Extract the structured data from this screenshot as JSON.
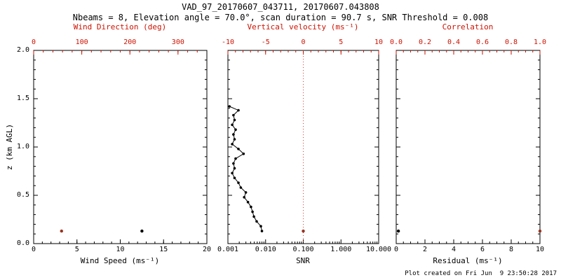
{
  "header": {
    "title": "VAD_97_20170607_043711, 20170607.043808",
    "subtitle": "Nbeams = 8, Elevation angle = 70.0°, scan duration = 90.7 s, SNR Threshold = 0.008"
  },
  "footer": {
    "created": "Plot created on Fri Jun  9 23:50:28 2017"
  },
  "colors": {
    "background": "#ffffff",
    "foreground": "#000000",
    "axis_red": "#cc1100",
    "point_red": "#993322",
    "refline_red": "#cc4433"
  },
  "y_axis": {
    "label": "z (km AGL)",
    "lim": [
      0,
      2
    ],
    "ticks": [
      "2.0",
      "1.5",
      "1.0",
      "0.5",
      "0.0"
    ]
  },
  "chart_data": [
    {
      "type": "scatter",
      "panel": "wind-speed-direction",
      "xlabel": "Wind Speed (ms⁻¹)",
      "xlim": [
        0,
        20
      ],
      "xticks": [
        "0",
        "5",
        "10",
        "15",
        "20"
      ],
      "xminor": 1,
      "ylabel": "z (km AGL)",
      "ylim": [
        0,
        2
      ],
      "top_axis": {
        "label": "Wind Direction (deg)",
        "lim": [
          0,
          360
        ],
        "ticks": [
          "0",
          "100",
          "200",
          "300"
        ],
        "minor": 20
      },
      "series": [
        {
          "name": "wind-speed",
          "axis": "bottom",
          "color": "#000000",
          "marker_r": 2.2,
          "points": [
            [
              12.5,
              0.13
            ]
          ]
        },
        {
          "name": "wind-direction",
          "axis": "top",
          "color": "#993322",
          "marker_r": 2.2,
          "points": [
            [
              58,
              0.13
            ]
          ]
        }
      ]
    },
    {
      "type": "line",
      "panel": "snr-vertical-velocity",
      "xlabel": "SNR",
      "xscale": "log",
      "xlim": [
        0.001,
        10
      ],
      "xticks": [
        "0.001",
        "0.010",
        "0.100",
        "1.000",
        "10.000"
      ],
      "ylim": [
        0,
        2
      ],
      "top_axis": {
        "label": "Vertical velocity (ms⁻¹)",
        "lim": [
          -10,
          10
        ],
        "ticks": [
          "-10",
          "-5",
          "0",
          "5",
          "10"
        ],
        "minor": 1
      },
      "refline": {
        "axis": "top",
        "value": 0,
        "style": "dotted",
        "color": "#cc4433"
      },
      "series": [
        {
          "name": "snr-profile",
          "axis": "bottom",
          "color": "#000000",
          "line": true,
          "marker_r": 1.8,
          "points": [
            [
              0.008,
              0.13
            ],
            [
              0.0075,
              0.18
            ],
            [
              0.0058,
              0.23
            ],
            [
              0.0049,
              0.28
            ],
            [
              0.0045,
              0.33
            ],
            [
              0.0041,
              0.38
            ],
            [
              0.0034,
              0.43
            ],
            [
              0.0027,
              0.48
            ],
            [
              0.003,
              0.53
            ],
            [
              0.0022,
              0.58
            ],
            [
              0.0019,
              0.63
            ],
            [
              0.0015,
              0.68
            ],
            [
              0.0013,
              0.73
            ],
            [
              0.0015,
              0.78
            ],
            [
              0.0014,
              0.83
            ],
            [
              0.0016,
              0.88
            ],
            [
              0.0026,
              0.93
            ],
            [
              0.0019,
              0.98
            ],
            [
              0.0013,
              1.03
            ],
            [
              0.0015,
              1.08
            ],
            [
              0.0014,
              1.13
            ],
            [
              0.0016,
              1.18
            ],
            [
              0.0013,
              1.23
            ],
            [
              0.0015,
              1.28
            ],
            [
              0.0014,
              1.33
            ],
            [
              0.0019,
              1.38
            ],
            [
              0.0011,
              1.42
            ]
          ]
        },
        {
          "name": "vertical-velocity",
          "axis": "top",
          "color": "#993322",
          "marker_r": 2.2,
          "points": [
            [
              0,
              0.13
            ]
          ]
        }
      ]
    },
    {
      "type": "scatter",
      "panel": "residual-correlation",
      "xlabel": "Residual (ms⁻¹)",
      "xlim": [
        0,
        10
      ],
      "xticks": [
        "0",
        "2",
        "4",
        "6",
        "8",
        "10"
      ],
      "xminor": 0.5,
      "ylim": [
        0,
        2
      ],
      "top_axis": {
        "label": "Correlation",
        "lim": [
          0,
          1
        ],
        "ticks": [
          "0.0",
          "0.2",
          "0.4",
          "0.6",
          "0.8",
          "1.0"
        ],
        "minor": 0.05
      },
      "series": [
        {
          "name": "residual",
          "axis": "bottom",
          "color": "#000000",
          "marker_r": 2.2,
          "points": [
            [
              0.15,
              0.13
            ]
          ]
        },
        {
          "name": "correlation",
          "axis": "top",
          "color": "#993322",
          "marker_r": 2.2,
          "points": [
            [
              1.0,
              0.13
            ]
          ]
        }
      ]
    }
  ]
}
